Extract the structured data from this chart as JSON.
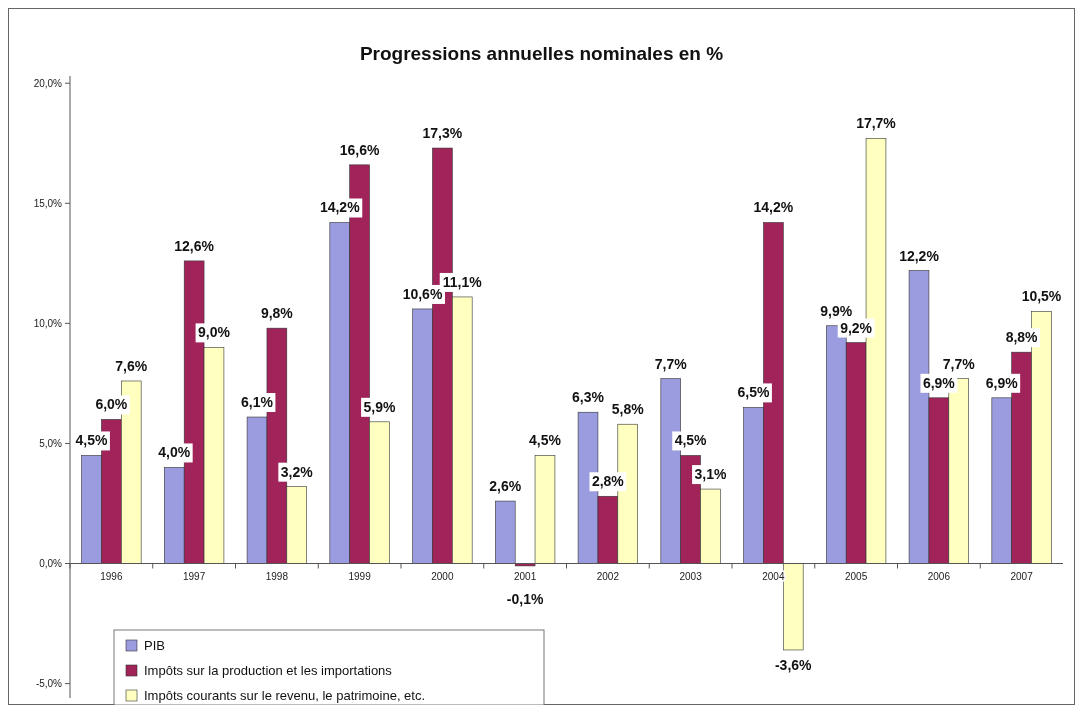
{
  "chart_data": {
    "type": "bar",
    "title": "Progressions annuelles nominales en %",
    "categories": [
      "1996",
      "1997",
      "1998",
      "1999",
      "2000",
      "2001",
      "2002",
      "2003",
      "2004",
      "2005",
      "2006",
      "2007"
    ],
    "series": [
      {
        "name": "PIB",
        "color": "#9b9be0",
        "values": [
          4.5,
          4.0,
          6.1,
          14.2,
          10.6,
          2.6,
          6.3,
          7.7,
          6.5,
          9.9,
          12.2,
          6.9
        ],
        "value_labels": [
          "4,5%",
          "4,0%",
          "6,1%",
          "14,2%",
          "10,6%",
          "2,6%",
          "6,3%",
          "7,7%",
          "6,5%",
          "9,9%",
          "12,2%",
          "6,9%"
        ]
      },
      {
        "name": "Impôts sur la production et les importations",
        "color": "#a0245a",
        "values": [
          6.0,
          12.6,
          9.8,
          16.6,
          17.3,
          -0.1,
          2.8,
          4.5,
          14.2,
          9.2,
          6.9,
          8.8
        ],
        "value_labels": [
          "6,0%",
          "12,6%",
          "9,8%",
          "16,6%",
          "17,3%",
          "-0,1%",
          "2,8%",
          "4,5%",
          "14,2%",
          "9,2%",
          "6,9%",
          "8,8%"
        ]
      },
      {
        "name": "Impôts courants sur le revenu, le patrimoine, etc.",
        "color": "#ffffc0",
        "values": [
          7.6,
          9.0,
          3.2,
          5.9,
          11.1,
          4.5,
          5.8,
          3.1,
          -3.6,
          17.7,
          7.7,
          10.5
        ],
        "value_labels": [
          "7,6%",
          "9,0%",
          "3,2%",
          "5,9%",
          "11,1%",
          "4,5%",
          "5,8%",
          "3,1%",
          "-3,6%",
          "17,7%",
          "7,7%",
          "10,5%"
        ]
      }
    ],
    "ylim": [
      -5.6,
      20.3
    ],
    "yticks": [
      {
        "value": -5,
        "label": "-5,0%"
      },
      {
        "value": 0,
        "label": "0,0%"
      },
      {
        "value": 5,
        "label": "5,0%"
      },
      {
        "value": 10,
        "label": "10,0%"
      },
      {
        "value": 15,
        "label": "15,0%"
      },
      {
        "value": 20,
        "label": "20,0%"
      }
    ],
    "grid": false,
    "legend": "bottom left"
  }
}
